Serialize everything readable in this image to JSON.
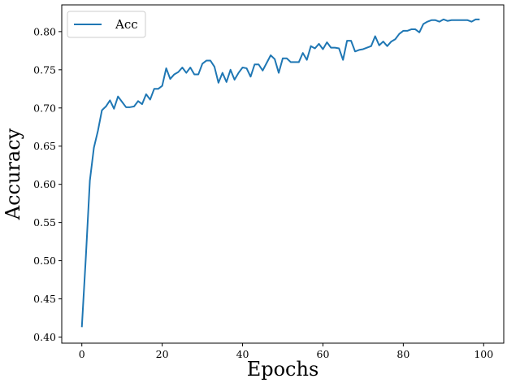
{
  "chart_data": {
    "type": "line",
    "xlabel": "Epochs",
    "ylabel": "Accuracy",
    "xlim": [
      -5,
      105
    ],
    "ylim": [
      0.392,
      0.835
    ],
    "x_ticks": [
      0,
      20,
      40,
      60,
      80,
      100
    ],
    "y_ticks": [
      0.4,
      0.45,
      0.5,
      0.55,
      0.6,
      0.65,
      0.7,
      0.75,
      0.8
    ],
    "x_tick_labels": [
      "0",
      "20",
      "40",
      "60",
      "80",
      "100"
    ],
    "y_tick_labels": [
      "0.40",
      "0.45",
      "0.50",
      "0.55",
      "0.60",
      "0.65",
      "0.70",
      "0.75",
      "0.80"
    ],
    "grid": false,
    "legend_position": "top-left",
    "series": [
      {
        "name": "Acc",
        "color": "#1f77b4",
        "x": [
          0,
          1,
          2,
          3,
          4,
          5,
          6,
          7,
          8,
          9,
          10,
          11,
          12,
          13,
          14,
          15,
          16,
          17,
          18,
          19,
          20,
          21,
          22,
          23,
          24,
          25,
          26,
          27,
          28,
          29,
          30,
          31,
          32,
          33,
          34,
          35,
          36,
          37,
          38,
          39,
          40,
          41,
          42,
          43,
          44,
          45,
          46,
          47,
          48,
          49,
          50,
          51,
          52,
          53,
          54,
          55,
          56,
          57,
          58,
          59,
          60,
          61,
          62,
          63,
          64,
          65,
          66,
          67,
          68,
          69,
          70,
          71,
          72,
          73,
          74,
          75,
          76,
          77,
          78,
          79,
          80,
          81,
          82,
          83,
          84,
          85,
          86,
          87,
          88,
          89,
          90,
          91,
          92,
          93,
          94,
          95,
          96,
          97,
          98,
          99
        ],
        "values": [
          0.413,
          0.505,
          0.605,
          0.648,
          0.67,
          0.697,
          0.702,
          0.71,
          0.699,
          0.715,
          0.708,
          0.701,
          0.701,
          0.702,
          0.709,
          0.705,
          0.718,
          0.711,
          0.725,
          0.725,
          0.729,
          0.752,
          0.738,
          0.744,
          0.747,
          0.753,
          0.746,
          0.753,
          0.744,
          0.744,
          0.758,
          0.762,
          0.762,
          0.754,
          0.733,
          0.746,
          0.734,
          0.75,
          0.737,
          0.746,
          0.753,
          0.752,
          0.741,
          0.757,
          0.757,
          0.749,
          0.759,
          0.769,
          0.764,
          0.746,
          0.765,
          0.765,
          0.76,
          0.76,
          0.76,
          0.772,
          0.763,
          0.781,
          0.778,
          0.784,
          0.777,
          0.786,
          0.779,
          0.779,
          0.778,
          0.763,
          0.788,
          0.788,
          0.774,
          0.776,
          0.777,
          0.779,
          0.781,
          0.794,
          0.782,
          0.787,
          0.781,
          0.787,
          0.79,
          0.797,
          0.801,
          0.801,
          0.803,
          0.803,
          0.799,
          0.81,
          0.813,
          0.815,
          0.815,
          0.813,
          0.816,
          0.814,
          0.815,
          0.815,
          0.815,
          0.815,
          0.815,
          0.813,
          0.816,
          0.816
        ]
      }
    ]
  }
}
